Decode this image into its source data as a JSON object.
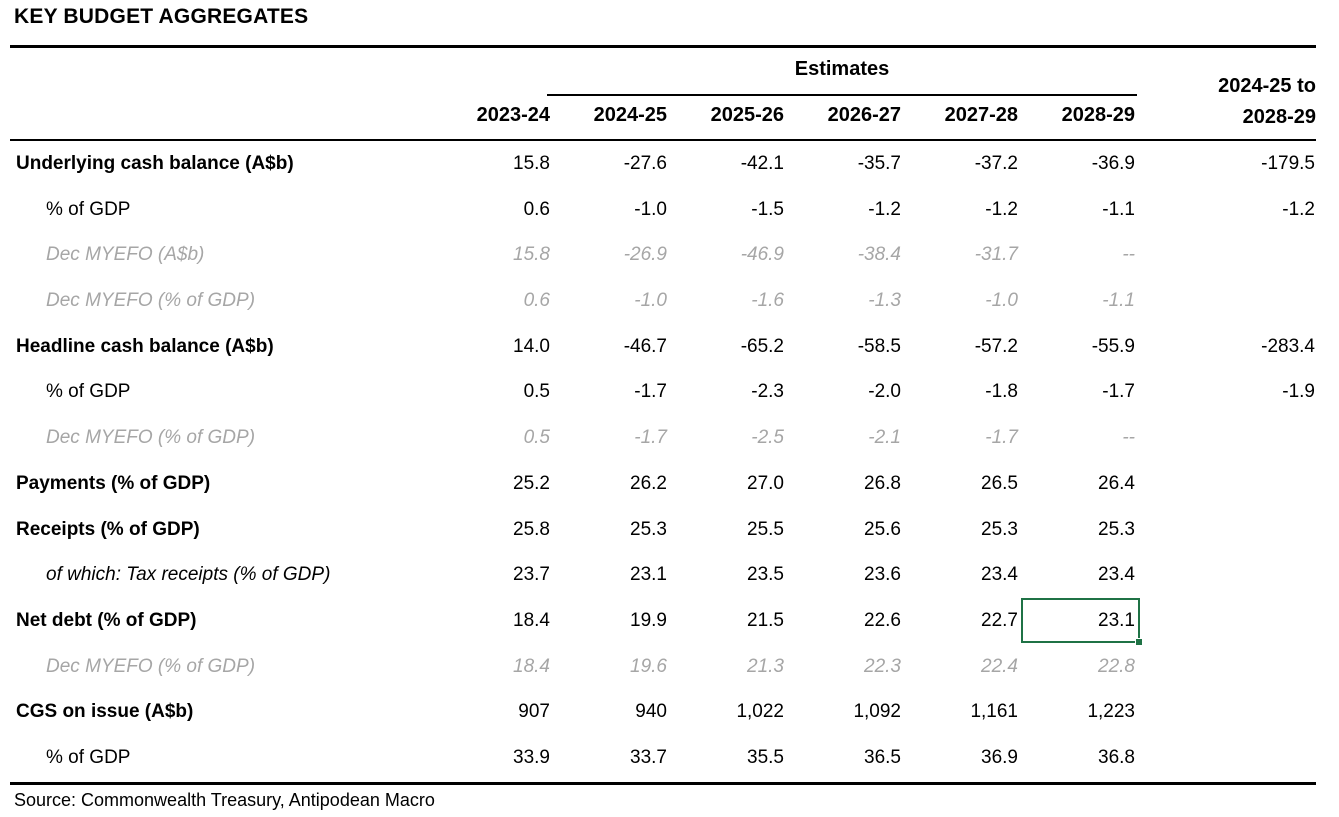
{
  "title": "KEY BUDGET AGGREGATES",
  "source": "Source: Commonwealth Treasury, Antipodean Macro",
  "colors": {
    "text": "#000000",
    "myefo_gray": "#a6a6a6",
    "selection_green": "#1F7245"
  },
  "table": {
    "group_header": "Estimates",
    "columns": [
      "2023-24",
      "2024-25",
      "2025-26",
      "2026-27",
      "2027-28",
      "2028-29"
    ],
    "total_column": {
      "line1": "2024-25 to",
      "line2": "2028-29"
    },
    "rows": [
      {
        "label": "Underlying cash balance (A$b)",
        "style": "bold",
        "values": [
          "15.8",
          "-27.6",
          "-42.1",
          "-35.7",
          "-37.2",
          "-36.9",
          "-179.5"
        ]
      },
      {
        "label": "% of GDP",
        "style": "indent",
        "values": [
          "0.6",
          "-1.0",
          "-1.5",
          "-1.2",
          "-1.2",
          "-1.1",
          "-1.2"
        ]
      },
      {
        "label": "Dec MYEFO (A$b)",
        "style": "myefo",
        "values": [
          "15.8",
          "-26.9",
          "-46.9",
          "-38.4",
          "-31.7",
          "--",
          ""
        ]
      },
      {
        "label": "Dec MYEFO (% of GDP)",
        "style": "myefo",
        "values": [
          "0.6",
          "-1.0",
          "-1.6",
          "-1.3",
          "-1.0",
          "-1.1",
          ""
        ]
      },
      {
        "label": "Headline cash balance (A$b)",
        "style": "bold",
        "values": [
          "14.0",
          "-46.7",
          "-65.2",
          "-58.5",
          "-57.2",
          "-55.9",
          "-283.4"
        ]
      },
      {
        "label": "% of GDP",
        "style": "indent",
        "values": [
          "0.5",
          "-1.7",
          "-2.3",
          "-2.0",
          "-1.8",
          "-1.7",
          "-1.9"
        ]
      },
      {
        "label": "Dec MYEFO (% of GDP)",
        "style": "myefo",
        "values": [
          "0.5",
          "-1.7",
          "-2.5",
          "-2.1",
          "-1.7",
          "--",
          ""
        ]
      },
      {
        "label": "Payments (% of GDP)",
        "style": "bold",
        "values": [
          "25.2",
          "26.2",
          "27.0",
          "26.8",
          "26.5",
          "26.4",
          ""
        ]
      },
      {
        "label": "Receipts (% of GDP)",
        "style": "bold",
        "values": [
          "25.8",
          "25.3",
          "25.5",
          "25.6",
          "25.3",
          "25.3",
          ""
        ]
      },
      {
        "label": "of which: Tax receipts (% of GDP)",
        "style": "italic-indent",
        "values": [
          "23.7",
          "23.1",
          "23.5",
          "23.6",
          "23.4",
          "23.4",
          ""
        ]
      },
      {
        "label": "Net debt (% of GDP)",
        "style": "bold",
        "values": [
          "18.4",
          "19.9",
          "21.5",
          "22.6",
          "22.7",
          "23.1",
          ""
        ]
      },
      {
        "label": "Dec MYEFO (% of GDP)",
        "style": "myefo",
        "values": [
          "18.4",
          "19.6",
          "21.3",
          "22.3",
          "22.4",
          "22.8",
          ""
        ]
      },
      {
        "label": "CGS on issue (A$b)",
        "style": "bold",
        "values": [
          "907",
          "940",
          "1,022",
          "1,092",
          "1,161",
          "1,223",
          ""
        ]
      },
      {
        "label": "% of GDP",
        "style": "indent",
        "values": [
          "33.9",
          "33.7",
          "35.5",
          "36.5",
          "36.9",
          "36.8",
          ""
        ]
      }
    ],
    "selection": {
      "row_label": "Net debt (% of GDP)",
      "column": "2028-29",
      "value": "23.1"
    }
  }
}
